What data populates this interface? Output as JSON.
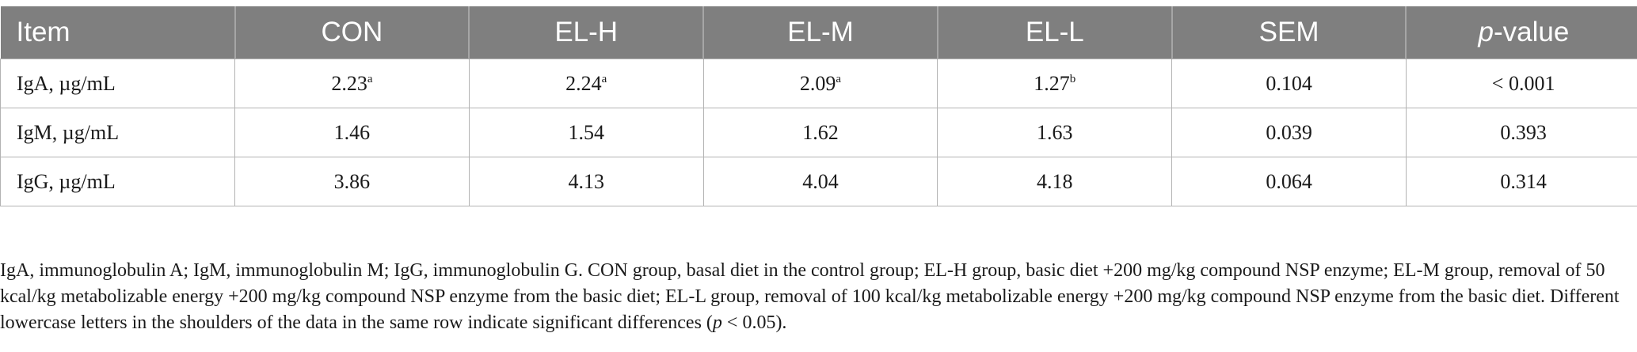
{
  "table": {
    "headers": [
      "Item",
      "CON",
      "EL-H",
      "EL-M",
      "EL-L",
      "SEM"
    ],
    "pvalue_header": {
      "italic": "p",
      "rest": "-value"
    },
    "rows": [
      {
        "item": "IgA, µg/mL",
        "cells": [
          {
            "v": "2.23",
            "sup": "a"
          },
          {
            "v": "2.24",
            "sup": "a"
          },
          {
            "v": "2.09",
            "sup": "a"
          },
          {
            "v": "1.27",
            "sup": "b"
          },
          {
            "v": "0.104",
            "sup": ""
          },
          {
            "v": "< 0.001",
            "sup": ""
          }
        ]
      },
      {
        "item": "IgM, µg/mL",
        "cells": [
          {
            "v": "1.46",
            "sup": ""
          },
          {
            "v": "1.54",
            "sup": ""
          },
          {
            "v": "1.62",
            "sup": ""
          },
          {
            "v": "1.63",
            "sup": ""
          },
          {
            "v": "0.039",
            "sup": ""
          },
          {
            "v": "0.393",
            "sup": ""
          }
        ]
      },
      {
        "item": "IgG, µg/mL",
        "cells": [
          {
            "v": "3.86",
            "sup": ""
          },
          {
            "v": "4.13",
            "sup": ""
          },
          {
            "v": "4.04",
            "sup": ""
          },
          {
            "v": "4.18",
            "sup": ""
          },
          {
            "v": "0.064",
            "sup": ""
          },
          {
            "v": "0.314",
            "sup": ""
          }
        ]
      }
    ]
  },
  "footnote": {
    "main": "IgA, immunoglobulin A; IgM, immunoglobulin M; IgG, immunoglobulin G. CON group, basal diet in the control group; EL-H group, basic diet +200 mg/kg compound NSP enzyme; EL-M group, removal of 50 kcal/kg metabolizable energy +200 mg/kg compound NSP enzyme from the basic diet; EL-L group, removal of 100 kcal/kg metabolizable energy +200 mg/kg compound NSP enzyme from the basic diet. Different lowercase letters in the shoulders of the data in the same row indicate significant differences (",
    "p": "p",
    "tail": " < 0.05)."
  }
}
